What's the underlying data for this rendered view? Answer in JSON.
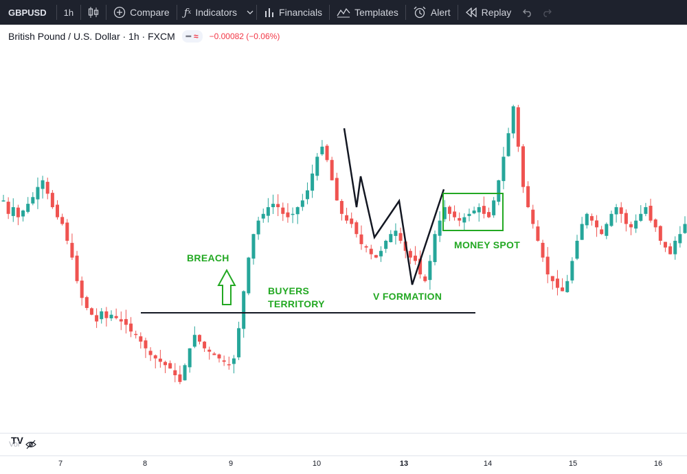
{
  "toolbar": {
    "symbol": "GBPUSD",
    "interval": "1h",
    "compare": "Compare",
    "indicators": "Indicators",
    "financials": "Financials",
    "templates": "Templates",
    "alert": "Alert",
    "replay": "Replay",
    "icons": [
      "candles-icon",
      "plus-circle-icon",
      "fx-icon",
      "chevron-down-icon",
      "bars-icon",
      "templates-icon",
      "alarm-clock-icon",
      "replay-icon",
      "undo-icon",
      "redo-icon"
    ]
  },
  "legend": {
    "title": "British Pound / U.S. Dollar · 1h · FXCM",
    "change": "−0.00082 (−0.06%)"
  },
  "colors": {
    "up": "#26a69a",
    "down": "#ef5350",
    "annotation": "#22a822",
    "line": "#131722",
    "toolbar_bg": "#1e222d"
  },
  "annotations": {
    "breach": "BREACH",
    "buyers_territory_line1": "BUYERS",
    "buyers_territory_line2": "TERRITORY",
    "v_formation": "V FORMATION",
    "money_spot": "MONEY SPOT"
  },
  "bottom": {
    "vol_label": "Vol",
    "logo": "TV"
  },
  "chart_data": {
    "type": "candlestick",
    "symbol": "GBPUSD",
    "interval": "1h",
    "x_tick_labels": [
      "7",
      "8",
      "9",
      "10",
      "13",
      "14",
      "15",
      "16"
    ],
    "bold_tick": "13",
    "grid": false,
    "legend": "none",
    "price_path_relative": [
      0.62,
      0.58,
      0.6,
      0.57,
      0.59,
      0.61,
      0.63,
      0.66,
      0.68,
      0.64,
      0.6,
      0.57,
      0.55,
      0.5,
      0.45,
      0.38,
      0.33,
      0.3,
      0.28,
      0.26,
      0.29,
      0.27,
      0.28,
      0.27,
      0.26,
      0.25,
      0.23,
      0.22,
      0.2,
      0.18,
      0.16,
      0.15,
      0.14,
      0.13,
      0.12,
      0.1,
      0.08,
      0.13,
      0.18,
      0.22,
      0.2,
      0.18,
      0.17,
      0.16,
      0.15,
      0.14,
      0.13,
      0.15,
      0.24,
      0.35,
      0.45,
      0.52,
      0.56,
      0.58,
      0.6,
      0.61,
      0.6,
      0.58,
      0.57,
      0.58,
      0.6,
      0.62,
      0.65,
      0.7,
      0.75,
      0.78,
      0.74,
      0.68,
      0.62,
      0.58,
      0.56,
      0.55,
      0.52,
      0.49,
      0.48,
      0.46,
      0.45,
      0.47,
      0.5,
      0.52,
      0.53,
      0.5,
      0.47,
      0.45,
      0.44,
      0.4,
      0.38,
      0.44,
      0.52,
      0.56,
      0.6,
      0.58,
      0.57,
      0.56,
      0.57,
      0.58,
      0.59,
      0.6,
      0.58,
      0.57,
      0.62,
      0.68,
      0.75,
      0.82,
      0.9,
      0.78,
      0.66,
      0.6,
      0.55,
      0.5,
      0.45,
      0.4,
      0.38,
      0.36,
      0.35,
      0.38,
      0.44,
      0.5,
      0.55,
      0.58,
      0.56,
      0.54,
      0.52,
      0.55,
      0.58,
      0.6,
      0.58,
      0.55,
      0.54,
      0.56,
      0.58,
      0.6,
      0.56,
      0.54,
      0.5,
      0.48,
      0.46,
      0.5,
      0.52,
      0.55
    ]
  }
}
